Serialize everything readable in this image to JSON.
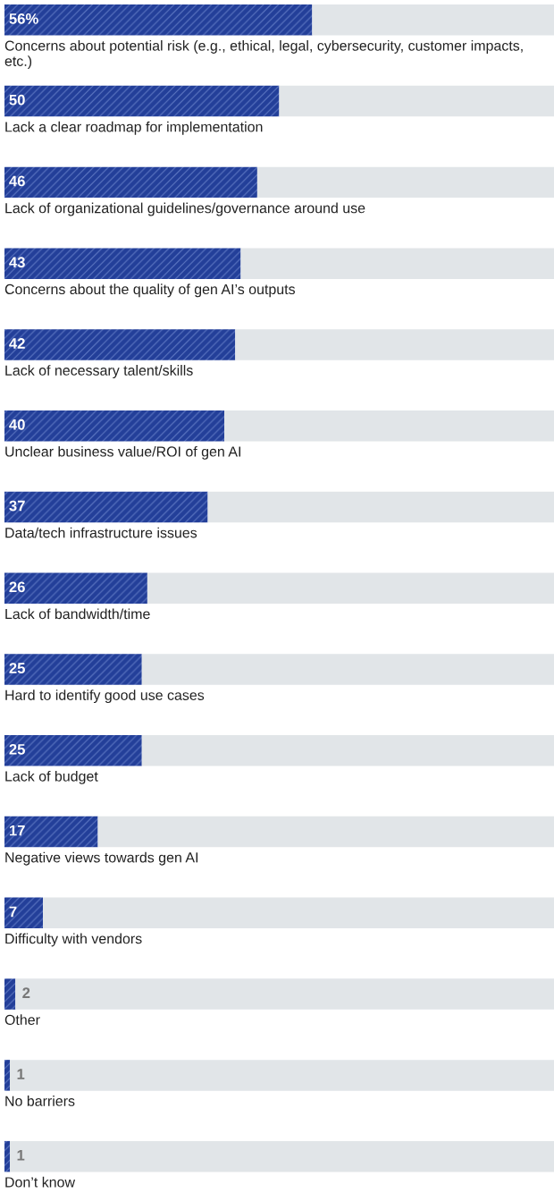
{
  "chart_data": {
    "type": "bar",
    "orientation": "horizontal",
    "stacked": true,
    "xlim": [
      0,
      100
    ],
    "categories": [
      "Concerns about potential risk (e.g., ethical, legal, cybersecurity, customer impacts, etc.)",
      "Lack a clear roadmap for implementation",
      "Lack of organizational guidelines/governance around use",
      "Concerns about the quality of gen AI’s outputs",
      "Lack of necessary talent/skills",
      "Unclear business value/ROI of gen AI",
      "Data/tech infrastructure issues",
      "Lack of bandwidth/time",
      "Hard to identify good use cases",
      "Lack of budget",
      "Negative views towards gen AI",
      "Difficulty with vendors",
      "Other",
      "No barriers",
      "Don’t know"
    ],
    "series": [
      {
        "color": "#233f99",
        "values": [
          56,
          50,
          46,
          43,
          42,
          40,
          37,
          26,
          25,
          25,
          17,
          7,
          2,
          1,
          1
        ],
        "value_labels": [
          "56%",
          "50",
          "46",
          "43",
          "42",
          "40",
          "37",
          "26",
          "25",
          "25",
          "17",
          "7",
          "2",
          "1",
          "1"
        ]
      },
      {
        "color": "#e1e5e8",
        "values": [
          44,
          50,
          54,
          57,
          58,
          60,
          63,
          74,
          75,
          75,
          83,
          93,
          98,
          99,
          99
        ]
      }
    ]
  }
}
